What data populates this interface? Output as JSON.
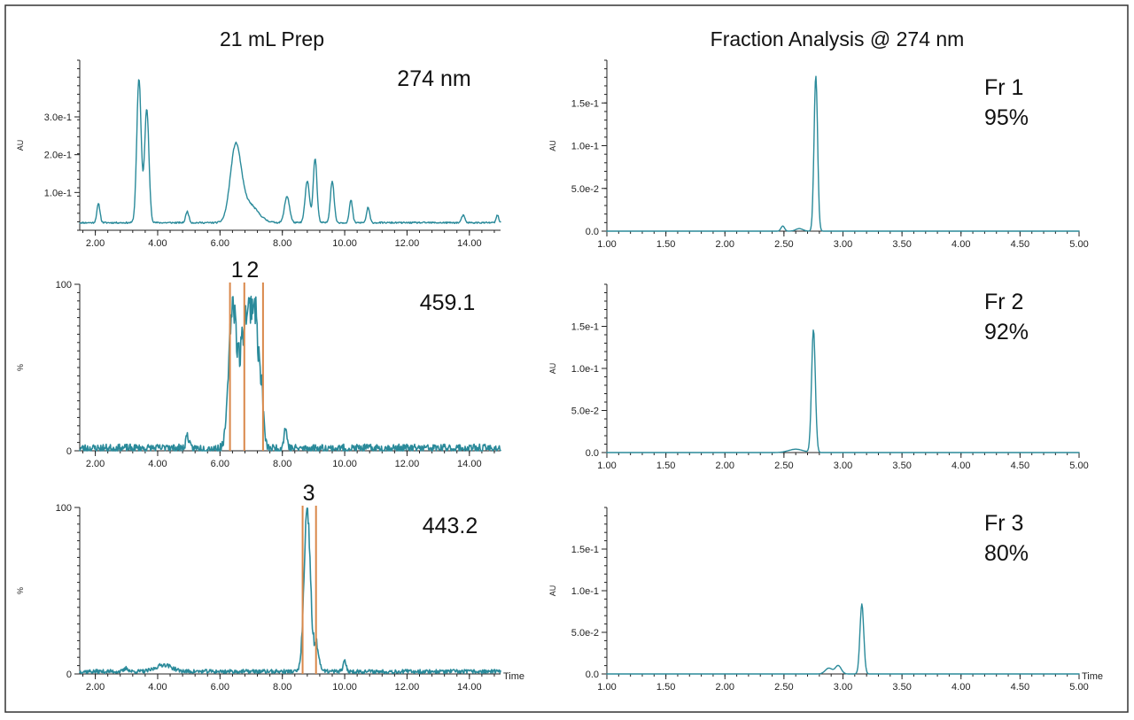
{
  "colors": {
    "trace": "#2a8a9a",
    "fraction_line": "#d9884a",
    "axis": "#222222"
  },
  "titles": {
    "left": "21 mL Prep",
    "right": "Fraction Analysis @ 274 nm"
  },
  "chart_data": [
    {
      "id": "prep_uv",
      "type": "line",
      "title": "21 mL Prep",
      "annotation": "274 nm",
      "ylabel": "AU",
      "xlabel": "",
      "xlim": [
        1.5,
        15.0
      ],
      "ylim": [
        0,
        0.45
      ],
      "xticks": [
        2,
        4,
        6,
        8,
        10,
        12,
        14
      ],
      "xtick_labels": [
        "2.00",
        "4.00",
        "6.00",
        "8.00",
        "10.00",
        "12.00",
        "14.00"
      ],
      "yticks": [
        0.1,
        0.2,
        0.3
      ],
      "ytick_labels": [
        "1.0e-1",
        "2.0e-1",
        "3.0e-1"
      ],
      "series": [
        {
          "name": "274 nm",
          "baseline": 0.02,
          "noise": 0.002,
          "seed": 11,
          "peaks": [
            [
              2.1,
              0.05,
              0.05
            ],
            [
              3.4,
              0.38,
              0.07
            ],
            [
              3.65,
              0.3,
              0.07
            ],
            [
              4.95,
              0.03,
              0.05
            ],
            [
              6.5,
              0.19,
              0.17
            ],
            [
              6.9,
              0.05,
              0.3
            ],
            [
              8.15,
              0.07,
              0.08
            ],
            [
              8.8,
              0.11,
              0.07
            ],
            [
              9.05,
              0.17,
              0.06
            ],
            [
              9.6,
              0.11,
              0.06
            ],
            [
              10.2,
              0.06,
              0.05
            ],
            [
              10.75,
              0.04,
              0.05
            ],
            [
              13.8,
              0.02,
              0.05
            ],
            [
              14.9,
              0.02,
              0.04
            ]
          ]
        }
      ],
      "fraction_lines": [],
      "markers": []
    },
    {
      "id": "prep_ms1",
      "type": "line",
      "annotation": "459.1",
      "ylabel": "%",
      "xlabel": "",
      "xlim": [
        1.5,
        15.0
      ],
      "ylim": [
        0,
        100
      ],
      "xticks": [
        2,
        4,
        6,
        8,
        10,
        12,
        14
      ],
      "xtick_labels": [
        "2.00",
        "4.00",
        "6.00",
        "8.00",
        "10.00",
        "12.00",
        "14.00"
      ],
      "yticks": [
        0,
        100
      ],
      "ytick_labels": [
        "0",
        "100"
      ],
      "series": [
        {
          "name": "459.1",
          "baseline": 1.5,
          "noise": 2.5,
          "noise_range": [
            6.3,
            7.4
          ],
          "seed": 23,
          "peaks": [
            [
              4.95,
              8,
              0.05
            ],
            [
              6.4,
              82,
              0.12
            ],
            [
              6.85,
              80,
              0.2
            ],
            [
              7.15,
              55,
              0.12
            ],
            [
              7.35,
              18,
              0.06
            ],
            [
              8.1,
              12,
              0.05
            ],
            [
              4.3,
              2,
              0.05
            ]
          ]
        }
      ],
      "fraction_lines": [
        6.32,
        6.78,
        7.38
      ],
      "markers": [
        {
          "x": 6.55,
          "label": "1"
        },
        {
          "x": 7.05,
          "label": "2"
        }
      ]
    },
    {
      "id": "prep_ms2",
      "type": "line",
      "annotation": "443.2",
      "ylabel": "%",
      "xlabel": "Time",
      "xlim": [
        1.5,
        15.0
      ],
      "ylim": [
        0,
        100
      ],
      "xticks": [
        2,
        4,
        6,
        8,
        10,
        12,
        14
      ],
      "xtick_labels": [
        "2.00",
        "4.00",
        "6.00",
        "8.00",
        "10.00",
        "12.00",
        "14.00"
      ],
      "yticks": [
        0,
        100
      ],
      "ytick_labels": [
        "0",
        "100"
      ],
      "series": [
        {
          "name": "443.2",
          "baseline": 1.5,
          "noise": 1.2,
          "noise_range": [
            8.6,
            9.1
          ],
          "seed": 37,
          "peaks": [
            [
              4.2,
              4,
              0.25
            ],
            [
              3.0,
              2,
              0.06
            ],
            [
              8.8,
              96,
              0.1
            ],
            [
              9.1,
              14,
              0.08
            ],
            [
              10.0,
              6,
              0.05
            ]
          ]
        }
      ],
      "fraction_lines": [
        8.65,
        9.08
      ],
      "markers": [
        {
          "x": 8.85,
          "label": "3"
        }
      ]
    },
    {
      "id": "fr1",
      "type": "line",
      "title": "Fraction Analysis @ 274 nm",
      "annotation": "Fr 1",
      "annotation2": "95%",
      "ylabel": "AU",
      "xlabel": "",
      "xlim": [
        1.0,
        5.0
      ],
      "ylim": [
        0,
        0.2
      ],
      "xticks": [
        1,
        1.5,
        2,
        2.5,
        3,
        3.5,
        4,
        4.5,
        5
      ],
      "xtick_labels": [
        "1.00",
        "1.50",
        "2.00",
        "2.50",
        "3.00",
        "3.50",
        "4.00",
        "4.50",
        "5.00"
      ],
      "yticks": [
        0,
        0.05,
        0.1,
        0.15
      ],
      "ytick_labels": [
        "0.0",
        "5.0e-2",
        "1.0e-1",
        "1.5e-1"
      ],
      "series": [
        {
          "name": "Fr 1",
          "baseline": 0.0,
          "noise": 0.0,
          "seed": 1,
          "peaks": [
            [
              2.49,
              0.006,
              0.015
            ],
            [
              2.63,
              0.003,
              0.03
            ],
            [
              2.77,
              0.182,
              0.015
            ]
          ]
        }
      ],
      "fraction_lines": [],
      "markers": []
    },
    {
      "id": "fr2",
      "type": "line",
      "annotation": "Fr 2",
      "annotation2": "92%",
      "ylabel": "AU",
      "xlabel": "",
      "xlim": [
        1.0,
        5.0
      ],
      "ylim": [
        0,
        0.2
      ],
      "xticks": [
        1,
        1.5,
        2,
        2.5,
        3,
        3.5,
        4,
        4.5,
        5
      ],
      "xtick_labels": [
        "1.00",
        "1.50",
        "2.00",
        "2.50",
        "3.00",
        "3.50",
        "4.00",
        "4.50",
        "5.00"
      ],
      "yticks": [
        0,
        0.05,
        0.1,
        0.15
      ],
      "ytick_labels": [
        "0.0",
        "5.0e-2",
        "1.0e-1",
        "1.5e-1"
      ],
      "series": [
        {
          "name": "Fr 2",
          "baseline": 0.0,
          "noise": 0.0,
          "seed": 2,
          "peaks": [
            [
              2.6,
              0.004,
              0.06
            ],
            [
              2.75,
              0.146,
              0.016
            ]
          ]
        }
      ],
      "fraction_lines": [],
      "markers": []
    },
    {
      "id": "fr3",
      "type": "line",
      "annotation": "Fr 3",
      "annotation2": "80%",
      "ylabel": "AU",
      "xlabel": "Time",
      "xlim": [
        1.0,
        5.0
      ],
      "ylim": [
        0,
        0.2
      ],
      "xticks": [
        1,
        1.5,
        2,
        2.5,
        3,
        3.5,
        4,
        4.5,
        5
      ],
      "xtick_labels": [
        "1.00",
        "1.50",
        "2.00",
        "2.50",
        "3.00",
        "3.50",
        "4.00",
        "4.50",
        "5.00"
      ],
      "yticks": [
        0,
        0.05,
        0.1,
        0.15
      ],
      "ytick_labels": [
        "0.0",
        "5.0e-2",
        "1.0e-1",
        "1.5e-1"
      ],
      "series": [
        {
          "name": "Fr 3",
          "baseline": 0.0,
          "noise": 0.0,
          "seed": 3,
          "peaks": [
            [
              2.88,
              0.007,
              0.03
            ],
            [
              2.96,
              0.01,
              0.025
            ],
            [
              3.16,
              0.084,
              0.016
            ]
          ]
        }
      ],
      "fraction_lines": [],
      "markers": []
    }
  ]
}
